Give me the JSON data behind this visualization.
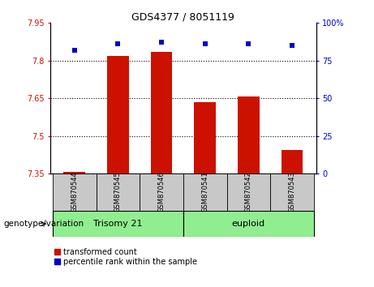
{
  "title": "GDS4377 / 8051119",
  "samples": [
    "GSM870544",
    "GSM870545",
    "GSM870546",
    "GSM870541",
    "GSM870542",
    "GSM870543"
  ],
  "bar_values": [
    7.358,
    7.82,
    7.835,
    7.635,
    7.658,
    7.445
  ],
  "dot_values": [
    82,
    86,
    87,
    86,
    86,
    85
  ],
  "ylim_left": [
    7.35,
    7.95
  ],
  "ylim_right": [
    0,
    100
  ],
  "yticks_left": [
    7.35,
    7.5,
    7.65,
    7.8,
    7.95
  ],
  "ytick_labels_left": [
    "7.35",
    "7.5",
    "7.65",
    "7.8",
    "7.95"
  ],
  "yticks_right": [
    0,
    25,
    50,
    75,
    100
  ],
  "ytick_labels_right": [
    "0",
    "25",
    "50",
    "75",
    "100%"
  ],
  "hlines": [
    7.5,
    7.65,
    7.8
  ],
  "bar_color": "#CC1100",
  "dot_color": "#0000CC",
  "bar_width": 0.5,
  "base_value": 7.35,
  "group_labels": [
    "Trisomy 21",
    "euploid"
  ],
  "group_color": "#90EE90",
  "genotype_label": "genotype/variation",
  "legend_bar_label": "transformed count",
  "legend_dot_label": "percentile rank within the sample",
  "tick_label_color_left": "#CC1100",
  "tick_label_color_right": "#0000CC",
  "sample_area_color": "#C8C8C8",
  "title_fontsize": 9,
  "tick_fontsize": 7,
  "sample_fontsize": 6,
  "group_fontsize": 8,
  "legend_fontsize": 7,
  "genotype_fontsize": 7.5
}
